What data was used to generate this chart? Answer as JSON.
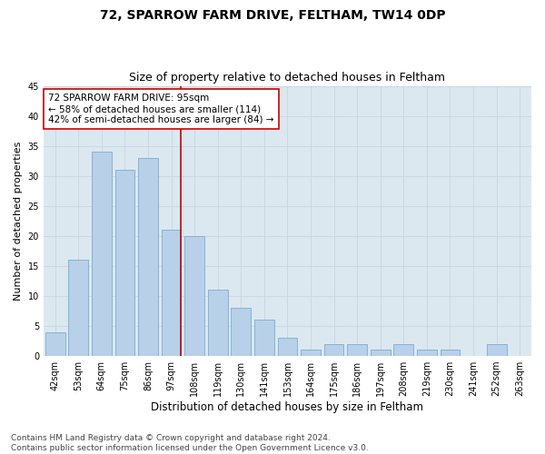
{
  "title": "72, SPARROW FARM DRIVE, FELTHAM, TW14 0DP",
  "subtitle": "Size of property relative to detached houses in Feltham",
  "xlabel": "Distribution of detached houses by size in Feltham",
  "ylabel": "Number of detached properties",
  "categories": [
    "42sqm",
    "53sqm",
    "64sqm",
    "75sqm",
    "86sqm",
    "97sqm",
    "108sqm",
    "119sqm",
    "130sqm",
    "141sqm",
    "153sqm",
    "164sqm",
    "175sqm",
    "186sqm",
    "197sqm",
    "208sqm",
    "219sqm",
    "230sqm",
    "241sqm",
    "252sqm",
    "263sqm"
  ],
  "values": [
    4,
    16,
    34,
    31,
    33,
    21,
    20,
    11,
    8,
    6,
    3,
    1,
    2,
    2,
    1,
    2,
    1,
    1,
    0,
    2,
    0
  ],
  "bar_color": "#b8d0e8",
  "bar_edge_color": "#7aadd4",
  "grid_color": "#c8d4e0",
  "background_color": "#dce8f0",
  "vline_color": "#cc0000",
  "vline_idx": 5,
  "annotation_lines": [
    "72 SPARROW FARM DRIVE: 95sqm",
    "← 58% of detached houses are smaller (114)",
    "42% of semi-detached houses are larger (84) →"
  ],
  "annotation_box_color": "#ffffff",
  "annotation_box_edge": "#cc0000",
  "ylim": [
    0,
    45
  ],
  "yticks": [
    0,
    5,
    10,
    15,
    20,
    25,
    30,
    35,
    40,
    45
  ],
  "footer_line1": "Contains HM Land Registry data © Crown copyright and database right 2024.",
  "footer_line2": "Contains public sector information licensed under the Open Government Licence v3.0.",
  "title_fontsize": 10,
  "subtitle_fontsize": 9,
  "xlabel_fontsize": 8.5,
  "ylabel_fontsize": 8,
  "tick_fontsize": 7,
  "annotation_fontsize": 7.5,
  "footer_fontsize": 6.5
}
